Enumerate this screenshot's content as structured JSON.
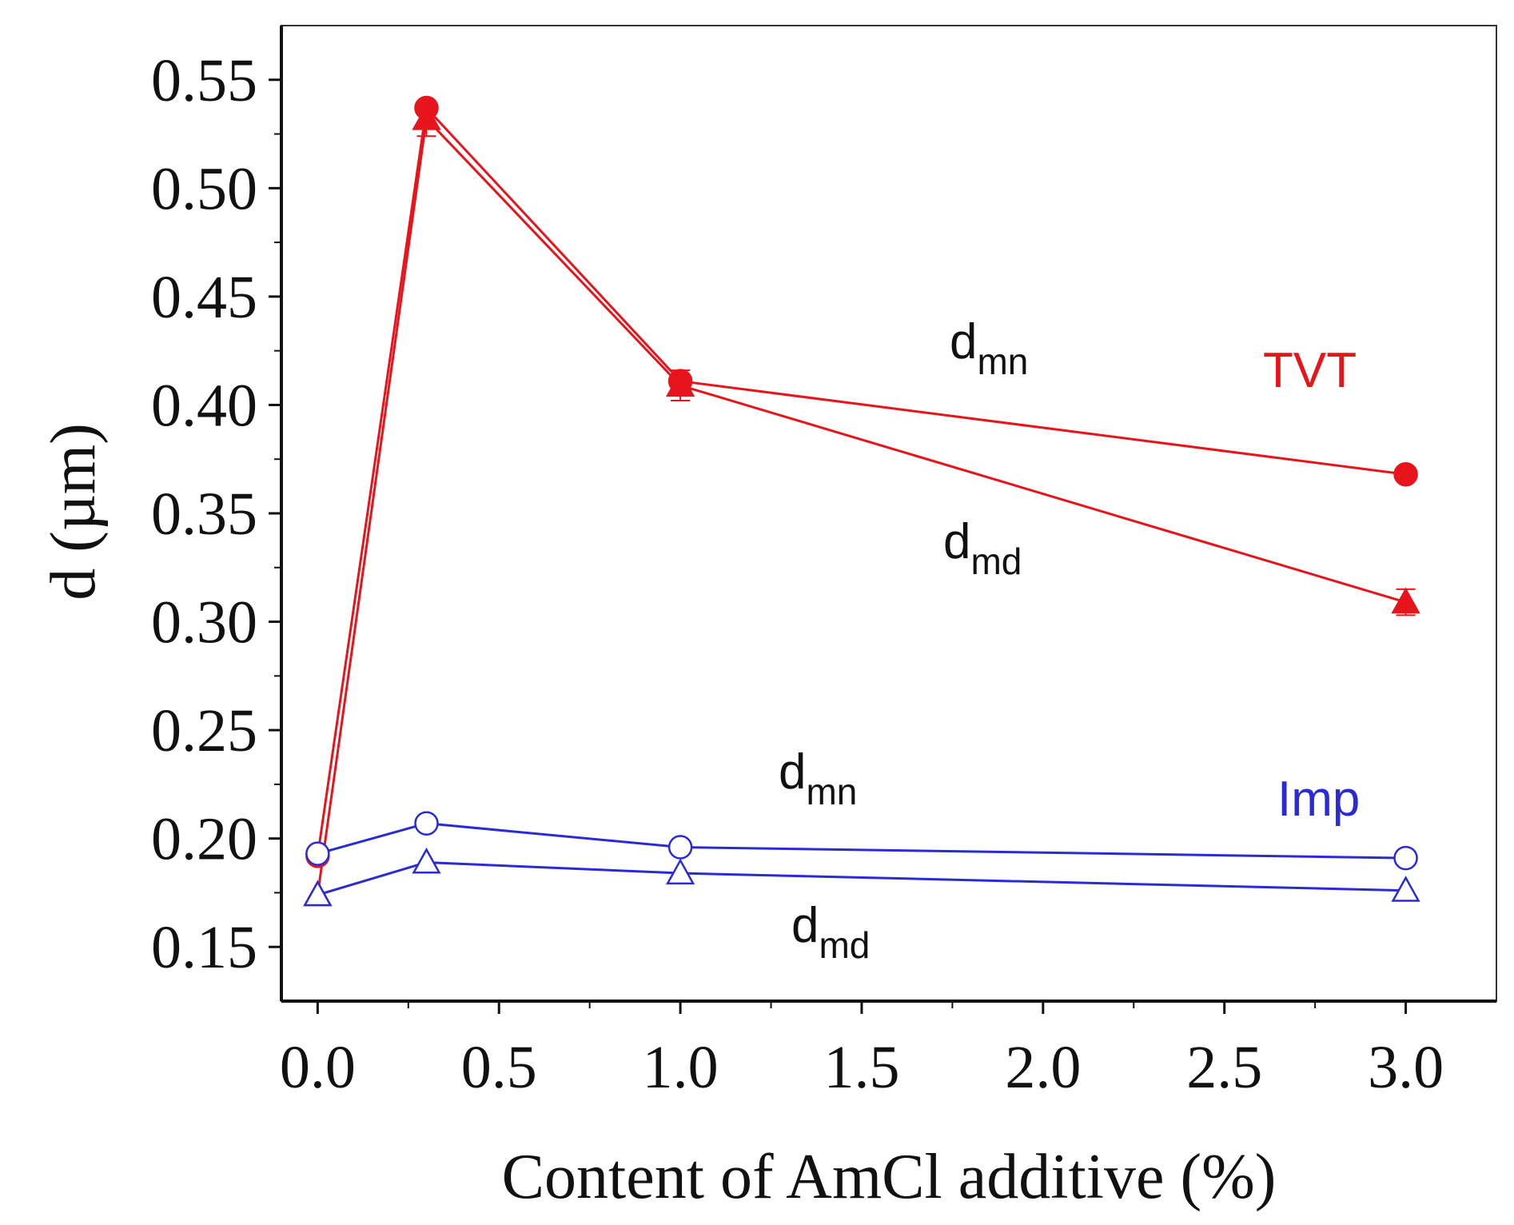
{
  "chart_data": {
    "type": "line",
    "xlabel": "Content of AmCl additive (%)",
    "ylabel": "d (µm)",
    "xlim": [
      -0.1,
      3.25
    ],
    "ylim": [
      0.125,
      0.575
    ],
    "xticks": [
      "0.0",
      "0.5",
      "1.0",
      "1.5",
      "2.0",
      "2.5",
      "3.0"
    ],
    "xtick_values": [
      0.0,
      0.5,
      1.0,
      1.5,
      2.0,
      2.5,
      3.0
    ],
    "yticks": [
      "0.15",
      "0.20",
      "0.25",
      "0.30",
      "0.35",
      "0.40",
      "0.45",
      "0.50",
      "0.55"
    ],
    "ytick_values": [
      0.15,
      0.2,
      0.25,
      0.3,
      0.35,
      0.4,
      0.45,
      0.5,
      0.55
    ],
    "x": [
      0.0,
      0.3,
      1.0,
      3.0
    ],
    "series": [
      {
        "name": "TVT dmn",
        "group": "TVT",
        "marker": "circle",
        "filled": true,
        "color": "#e8141c",
        "values": [
          0.192,
          0.537,
          0.411,
          0.368
        ]
      },
      {
        "name": "TVT dmd",
        "group": "TVT",
        "marker": "triangle",
        "filled": true,
        "color": "#e8141c",
        "values": [
          0.174,
          0.532,
          0.409,
          0.309
        ],
        "errors": [
          0.0,
          0.008,
          0.007,
          0.006
        ]
      },
      {
        "name": "Imp dmn",
        "group": "Imp",
        "marker": "circle",
        "filled": false,
        "color": "#2b2bd6",
        "values": [
          0.193,
          0.207,
          0.196,
          0.191
        ]
      },
      {
        "name": "Imp dmd",
        "group": "Imp",
        "marker": "triangle",
        "filled": false,
        "color": "#2b2bd6",
        "values": [
          0.174,
          0.189,
          0.184,
          0.176
        ]
      }
    ],
    "annotations": [
      {
        "main": "d",
        "sub": "mn"
      },
      {
        "main": "d",
        "sub": "md"
      },
      {
        "main": "d",
        "sub": "mn"
      },
      {
        "main": "d",
        "sub": "md"
      }
    ],
    "group_labels": [
      {
        "text": "TVT",
        "color": "#e8141c"
      },
      {
        "text": "Imp",
        "color": "#2b2bd6"
      }
    ]
  }
}
